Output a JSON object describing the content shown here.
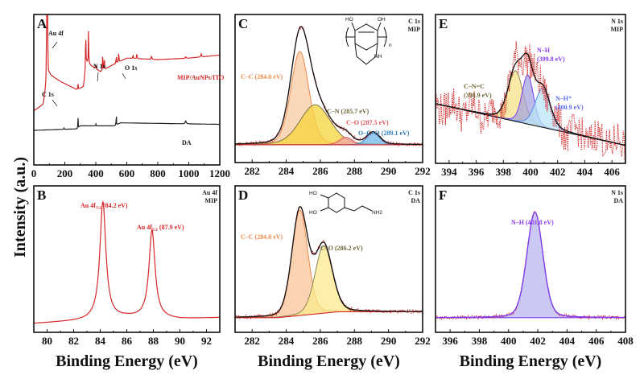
{
  "figure": {
    "ylabel": "Intensity (a.u.)",
    "xlabel": "Binding Energy (eV)"
  },
  "chart_data": [
    {
      "id": "A",
      "type": "line",
      "panel_label": "A",
      "title": "",
      "xlabel": "",
      "ylabel": "Intensity (a.u.)",
      "xlim": [
        0,
        1200
      ],
      "xticks": [
        0,
        200,
        400,
        600,
        800,
        1000,
        1200
      ],
      "grid": false,
      "series": [
        {
          "name": "MIP/AuNPs/ITO",
          "color": "#d62728",
          "label_position": "right",
          "baseline": [
            [
              0,
              0.36
            ],
            [
              60,
              0.4
            ],
            [
              80,
              0.52
            ],
            [
              100,
              0.6
            ],
            [
              180,
              0.55
            ],
            [
              280,
              0.5
            ],
            [
              320,
              0.52
            ],
            [
              340,
              0.68
            ],
            [
              400,
              0.64
            ],
            [
              430,
              0.62
            ],
            [
              500,
              0.66
            ],
            [
              540,
              0.68
            ],
            [
              600,
              0.71
            ],
            [
              800,
              0.7
            ],
            [
              1000,
              0.71
            ],
            [
              1200,
              0.73
            ]
          ],
          "peaks": [
            [
              84,
              0.95,
              3
            ],
            [
              88,
              0.8,
              3
            ],
            [
              285,
              0.04,
              3
            ],
            [
              335,
              0.26,
              3
            ],
            [
              353,
              0.22,
              3
            ],
            [
              400,
              0.03,
              3
            ],
            [
              445,
              0.18,
              2
            ],
            [
              455,
              0.12,
              2
            ],
            [
              532,
              0.05,
              3
            ],
            [
              548,
              0.07,
              3
            ],
            [
              640,
              0.02,
              4
            ],
            [
              665,
              0.03,
              4
            ],
            [
              760,
              0.02,
              5
            ],
            [
              980,
              0.01,
              6
            ],
            [
              1080,
              0.02,
              6
            ]
          ]
        },
        {
          "name": "DA",
          "color": "#222222",
          "label_position": "right",
          "baseline": [
            [
              0,
              0.23
            ],
            [
              280,
              0.24
            ],
            [
              300,
              0.26
            ],
            [
              520,
              0.26
            ],
            [
              560,
              0.28
            ],
            [
              1200,
              0.27
            ]
          ],
          "peaks": [
            [
              195,
              0.01,
              3
            ],
            [
              285,
              0.09,
              2
            ],
            [
              400,
              0.02,
              2
            ],
            [
              532,
              0.09,
              2
            ],
            [
              980,
              0.02,
              8
            ]
          ]
        }
      ],
      "annotations": [
        {
          "text": "Au 4f",
          "x": 84
        },
        {
          "text": "C 1s",
          "x": 285
        },
        {
          "text": "N 1s",
          "x": 400
        },
        {
          "text": "O 1s",
          "x": 532
        },
        {
          "text": "MIP/AuNPs/ITO",
          "x": 1000
        },
        {
          "text": "DA",
          "x": 1000
        }
      ]
    },
    {
      "id": "B",
      "type": "line",
      "panel_label": "B",
      "corner_text": [
        "Au 4f",
        "MIP"
      ],
      "xlabel": "Binding Energy (eV)",
      "xlim": [
        79,
        93
      ],
      "xticks": [
        80,
        82,
        84,
        86,
        88,
        90,
        92
      ],
      "grid": false,
      "series": [
        {
          "name": "Au 4f",
          "color": "#d62728",
          "baseline": [
            [
              79,
              0.06
            ],
            [
              83,
              0.08
            ],
            [
              86,
              0.1
            ],
            [
              90,
              0.09
            ],
            [
              93,
              0.1
            ]
          ],
          "peaks": [
            [
              84.2,
              0.8,
              0.55
            ],
            [
              87.9,
              0.6,
              0.55
            ]
          ]
        }
      ],
      "annotations": [
        {
          "text": "Au 4f7/2 (84.2 eV)",
          "main": "Au 4f",
          "sub": "7/2",
          "rest": " (84.2 eV)",
          "x": 84.2
        },
        {
          "text": "Au 4f5/2 (87.9 eV)",
          "main": "Au 4f",
          "sub": "5/2",
          "rest": " (87.9 eV)",
          "x": 87.9
        }
      ]
    },
    {
      "id": "C",
      "type": "area",
      "panel_label": "C",
      "corner_text": [
        "C 1s",
        "MIP"
      ],
      "xlabel": "",
      "xlim": [
        281,
        292
      ],
      "xticks": [
        282,
        284,
        286,
        288,
        290,
        292
      ],
      "grid": false,
      "background": [
        [
          281,
          0.12
        ],
        [
          292,
          0.12
        ]
      ],
      "components": [
        {
          "name": "C–C",
          "center": 284.8,
          "height": 0.63,
          "fwhm": 1.25,
          "fill": "#f9c9a3",
          "stroke": "#f08a4b",
          "label": "C–C (284.8 eV)",
          "label_color": "#f08a4b"
        },
        {
          "name": "C–N",
          "center": 285.7,
          "height": 0.27,
          "fwhm": 2.1,
          "fill": "#f5d43a",
          "stroke": "#7d7548",
          "label": "C–N (285.7 eV)",
          "label_color": "#6f6a3a"
        },
        {
          "name": "C–O",
          "center": 287.5,
          "height": 0.05,
          "fwhm": 0.9,
          "fill": "#f2a5a5",
          "stroke": "#e05252",
          "label": "C–O (287.5 eV)",
          "label_color": "#e05252"
        },
        {
          "name": "O–C=O",
          "center": 289.1,
          "height": 0.08,
          "fwhm": 0.9,
          "fill": "#6fb7e8",
          "stroke": "#3a86c4",
          "label": "O–C=O (289.1 eV)",
          "label_color": "#2f7fc0"
        }
      ],
      "envelope_color": "#111111",
      "raw_color": "#d62728",
      "structure_labels": [
        "HO",
        "OH",
        "NH",
        "n"
      ]
    },
    {
      "id": "D",
      "type": "area",
      "panel_label": "D",
      "corner_text": [
        "C 1s",
        "DA"
      ],
      "xlabel": "Binding Energy (eV)",
      "xlim": [
        281,
        292
      ],
      "xticks": [
        282,
        284,
        286,
        288,
        290,
        292
      ],
      "grid": false,
      "background": [
        [
          281,
          0.1
        ],
        [
          283.5,
          0.1
        ],
        [
          287,
          0.14
        ],
        [
          292,
          0.14
        ]
      ],
      "components": [
        {
          "name": "C–C",
          "center": 284.8,
          "height": 0.72,
          "fwhm": 1.1,
          "fill": "#f9c49a",
          "stroke": "#f08a4b",
          "label": "C–C (284.8 eV)",
          "label_color": "#f08a4b"
        },
        {
          "name": "C–O",
          "center": 286.2,
          "height": 0.46,
          "fwhm": 1.2,
          "fill": "#fbe98c",
          "stroke": "#8a8455",
          "label": "C–O (286.2 eV)",
          "label_color": "#6f6a3a"
        }
      ],
      "envelope_color": "#111111",
      "raw_color": "#d62728",
      "structure_labels": [
        "HO",
        "HO",
        "NH2"
      ]
    },
    {
      "id": "E",
      "type": "area",
      "panel_label": "E",
      "corner_text": [
        "N 1s",
        "MIP"
      ],
      "xlabel": "",
      "xlim": [
        393,
        407
      ],
      "xticks": [
        394,
        396,
        398,
        400,
        402,
        404,
        406
      ],
      "grid": false,
      "background": [
        [
          393,
          0.4
        ],
        [
          407,
          0.12
        ]
      ],
      "components": [
        {
          "name": "C–N=C",
          "center": 398.9,
          "height": 0.34,
          "fwhm": 1.3,
          "fill": "#f7e28a",
          "stroke": "#8a8455",
          "label": "C–N=C (398.9 eV)",
          "label_lines": [
            "C–N=C",
            "(398.9 eV)"
          ],
          "label_color": "#6f6a3a"
        },
        {
          "name": "N–H",
          "center": 399.8,
          "height": 0.33,
          "fwhm": 1.0,
          "fill": "#a6a3e0",
          "stroke": "#7a3cf0",
          "label": "N–H (399.8 eV)",
          "label_lines": [
            "N–H",
            "(399.8 eV)"
          ],
          "label_color": "#8a3cf0"
        },
        {
          "name": "N–H+",
          "center": 400.9,
          "height": 0.26,
          "fwhm": 1.3,
          "fill": "#b9e6f7",
          "stroke": "#5a8cf0",
          "label": "N–H+ (400.9 eV)",
          "label_lines": [
            "N–H⁺",
            "(400.9 eV)"
          ],
          "label_color": "#5a6cf0"
        }
      ],
      "envelope_color": "#111111",
      "raw_color": "#d62728"
    },
    {
      "id": "F",
      "type": "area",
      "panel_label": "F",
      "corner_text": [
        "N 1s",
        "DA"
      ],
      "xlabel": "Binding Energy (eV)",
      "xlim": [
        395,
        408
      ],
      "xticks": [
        396,
        398,
        400,
        402,
        404,
        406,
        408
      ],
      "grid": false,
      "background": [
        [
          395,
          0.1
        ],
        [
          408,
          0.1
        ]
      ],
      "components": [
        {
          "name": "N–H",
          "center": 401.8,
          "height": 0.72,
          "fwhm": 1.3,
          "fill": "#b9b6f2",
          "stroke": "#7a3cf0",
          "label": "N–H (401.8 eV)",
          "label_color": "#8a3cf0"
        }
      ],
      "envelope_color": "#7a3cf0",
      "raw_color": "#d62728"
    }
  ]
}
